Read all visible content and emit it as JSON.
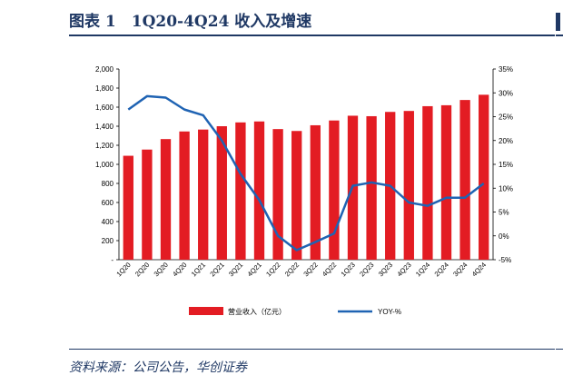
{
  "header": {
    "title": "图表 1　1Q20-4Q24 收入及增速"
  },
  "footer": {
    "source": "资料来源：公司公告，华创证券"
  },
  "colors": {
    "bar": "#e31c23",
    "line": "#1f63b3",
    "title": "#1f3864"
  },
  "chart_data": {
    "type": "bar",
    "categories": [
      "1Q20",
      "2Q20",
      "3Q20",
      "4Q20",
      "1Q21",
      "2Q21",
      "3Q21",
      "4Q21",
      "1Q22",
      "2Q22",
      "3Q22",
      "4Q22",
      "1Q23",
      "2Q23",
      "3Q23",
      "4Q23",
      "1Q24",
      "2Q24",
      "3Q24",
      "4Q24"
    ],
    "series": [
      {
        "name": "营业收入（亿元）",
        "type": "bar",
        "axis": "left",
        "values": [
          1090,
          1155,
          1265,
          1345,
          1365,
          1400,
          1440,
          1450,
          1370,
          1350,
          1410,
          1460,
          1510,
          1505,
          1550,
          1560,
          1610,
          1620,
          1675,
          1730
        ]
      },
      {
        "name": "YOY-%",
        "type": "line",
        "axis": "right",
        "values": [
          26.5,
          29.3,
          29.0,
          26.5,
          25.3,
          20.0,
          13.0,
          7.5,
          0.0,
          -3.0,
          -1.3,
          0.5,
          10.5,
          11.2,
          10.5,
          7.0,
          6.3,
          8.0,
          8.0,
          11.0
        ]
      }
    ],
    "y_left": {
      "ticks": [
        "2,000",
        "1,800",
        "1,600",
        "1,400",
        "1,200",
        "1,000",
        "800",
        "600",
        "400",
        "200",
        "-"
      ],
      "ylim": [
        0,
        2000
      ]
    },
    "y_right": {
      "ticks": [
        "35%",
        "30%",
        "25%",
        "20%",
        "15%",
        "10%",
        "5%",
        "0%",
        "-5%"
      ],
      "ylim": [
        -5,
        35
      ]
    },
    "legend": {
      "placement": "bottom"
    }
  }
}
